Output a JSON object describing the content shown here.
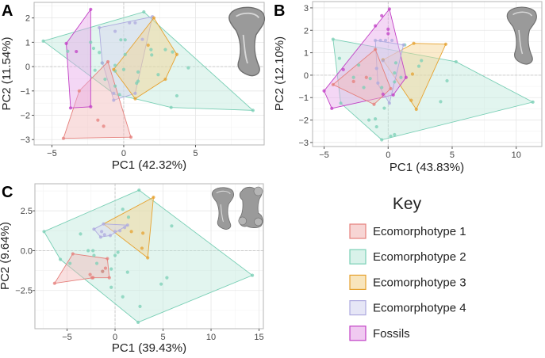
{
  "colors": {
    "eco1": {
      "fill": "#f2b9b7",
      "stroke": "#e57f7b"
    },
    "eco2": {
      "fill": "#bfe9dc",
      "stroke": "#79cfb5"
    },
    "eco3": {
      "fill": "#f4d38f",
      "stroke": "#e6a230"
    },
    "eco4": {
      "fill": "#d6d5f0",
      "stroke": "#aeaadf"
    },
    "fossil": {
      "fill": "#e6a7e8",
      "stroke": "#c13fc5"
    }
  },
  "key": {
    "title": "Key",
    "items": [
      {
        "group": "eco1",
        "label": "Ecomorphotype 1"
      },
      {
        "group": "eco2",
        "label": "Ecomorphotype 2"
      },
      {
        "group": "eco3",
        "label": "Ecomorphotype 3"
      },
      {
        "group": "eco4",
        "label": "Ecomorphotype 4"
      },
      {
        "group": "fossil",
        "label": "Fossils"
      }
    ]
  },
  "chart_data": [
    {
      "id": "A",
      "type": "scatter",
      "letter": "A",
      "xlabel": "PC1 (42.32%)",
      "ylabel": "PC2 (11.54%)",
      "xlim": [
        -6.24,
        9.78
      ],
      "ylim": [
        -3.22,
        2.64
      ],
      "xticks": [
        -5,
        0,
        5
      ],
      "yticks": [
        -3,
        -2,
        -1,
        0,
        1,
        2
      ],
      "xminor": [
        -2.5,
        2.5,
        7.5
      ],
      "yminor": [
        -2.5,
        -1.5,
        -0.5,
        0.5,
        1.5,
        2.5
      ],
      "grid": true,
      "groups": [
        {
          "group": "eco2",
          "hull": [
            [
              -5.6,
              1.05
            ],
            [
              1.4,
              2.25
            ],
            [
              9.0,
              -1.8
            ],
            [
              3.3,
              -1.68
            ],
            [
              0.8,
              -1.32
            ],
            [
              -0.6,
              -1.15
            ]
          ],
          "points": [
            [
              -5.6,
              1.05
            ],
            [
              1.4,
              2.25
            ],
            [
              9.0,
              -1.8
            ],
            [
              3.3,
              -1.68
            ],
            [
              3.7,
              -1.2
            ],
            [
              -3.9,
              0.63
            ],
            [
              -2.3,
              1.0
            ],
            [
              -2.1,
              0.75
            ],
            [
              -1.7,
              0.58
            ],
            [
              -1.5,
              0.15
            ],
            [
              -2.0,
              -0.15
            ],
            [
              -1.3,
              -0.52
            ],
            [
              -0.6,
              -0.8
            ],
            [
              -0.2,
              1.1
            ],
            [
              0.1,
              1.1
            ],
            [
              0.1,
              0.5
            ],
            [
              0.0,
              -0.12
            ],
            [
              1.0,
              -0.22
            ],
            [
              1.0,
              -0.6
            ],
            [
              0.9,
              -0.68
            ],
            [
              1.9,
              0.7
            ],
            [
              1.95,
              0.48
            ],
            [
              2.9,
              0.7
            ],
            [
              3.4,
              0.6
            ],
            [
              2.4,
              -0.33
            ],
            [
              4.5,
              -0.05
            ],
            [
              -0.6,
              0.05
            ],
            [
              -0.6,
              -0.18
            ],
            [
              -0.3,
              -1.15
            ]
          ]
        },
        {
          "group": "eco4",
          "hull": [
            [
              -1.7,
              1.6
            ],
            [
              2.0,
              2.05
            ],
            [
              0.8,
              -1.1
            ],
            [
              -0.7,
              -1.38
            ],
            [
              -1.5,
              0.2
            ]
          ],
          "points": [
            [
              -1.7,
              1.6
            ],
            [
              2.0,
              2.05
            ],
            [
              0.8,
              -1.1
            ],
            [
              -0.7,
              -1.38
            ],
            [
              -1.5,
              0.15
            ],
            [
              -0.6,
              1.45
            ],
            [
              0.4,
              1.8
            ],
            [
              0.8,
              1.8
            ],
            [
              1.3,
              1.12
            ],
            [
              -0.7,
              -1.1
            ]
          ]
        },
        {
          "group": "eco3",
          "hull": [
            [
              2.1,
              2.0
            ],
            [
              3.7,
              0.5
            ],
            [
              2.9,
              -0.52
            ],
            [
              0.8,
              -1.32
            ],
            [
              -0.7,
              -0.12
            ]
          ],
          "points": [
            [
              2.1,
              2.0
            ],
            [
              3.7,
              0.5
            ],
            [
              2.9,
              -0.52
            ],
            [
              0.8,
              -1.32
            ],
            [
              -0.7,
              -0.12
            ],
            [
              1.7,
              0.88
            ]
          ]
        },
        {
          "group": "eco1",
          "hull": [
            [
              -1.1,
              0.2
            ],
            [
              -3.1,
              -1.0
            ],
            [
              -4.2,
              -2.95
            ],
            [
              0.5,
              -2.9
            ]
          ],
          "points": [
            [
              -1.1,
              0.2
            ],
            [
              -3.1,
              -1.0
            ],
            [
              -4.2,
              -2.95
            ],
            [
              0.5,
              -2.9
            ],
            [
              -1.8,
              -2.2
            ],
            [
              -1.4,
              -2.45
            ]
          ]
        },
        {
          "group": "fossil",
          "hull": [
            [
              -2.3,
              2.35
            ],
            [
              -4.0,
              0.95
            ],
            [
              -3.7,
              -1.7
            ],
            [
              -2.3,
              -1.65
            ]
          ],
          "points": [
            [
              -2.3,
              2.35
            ],
            [
              -4.0,
              0.95
            ],
            [
              -3.7,
              -1.7
            ],
            [
              -2.3,
              -1.65
            ],
            [
              -3.3,
              0.62
            ]
          ]
        }
      ]
    },
    {
      "id": "B",
      "type": "scatter",
      "letter": "B",
      "xlabel": "PC1 (43.83%)",
      "ylabel": "PC2 (12.10%)",
      "xlim": [
        -5.9,
        12.0
      ],
      "ylim": [
        -3.18,
        3.28
      ],
      "xticks": [
        -5,
        0,
        5,
        10
      ],
      "yticks": [
        -3,
        -2,
        -1,
        0,
        1,
        2,
        3
      ],
      "xminor": [
        -2.5,
        2.5,
        7.5
      ],
      "yminor": [
        -2.5,
        -1.5,
        -0.5,
        0.5,
        1.5,
        2.5
      ],
      "grid": true,
      "groups": [
        {
          "group": "eco2",
          "hull": [
            [
              -4.3,
              1.6
            ],
            [
              5.3,
              0.6
            ],
            [
              11.3,
              -1.2
            ],
            [
              -0.5,
              -2.88
            ],
            [
              -3.7,
              -1.25
            ]
          ],
          "points": [
            [
              -4.3,
              1.6
            ],
            [
              5.3,
              0.6
            ],
            [
              11.3,
              -1.2
            ],
            [
              -0.5,
              -2.88
            ],
            [
              -3.7,
              -1.25
            ],
            [
              -3.8,
              0.75
            ],
            [
              -2.3,
              0.45
            ],
            [
              -2.7,
              -0.1
            ],
            [
              -1.4,
              -0.15
            ],
            [
              -1.9,
              -0.55
            ],
            [
              -0.5,
              -0.55
            ],
            [
              -0.3,
              -1.47
            ],
            [
              -1.0,
              -1.95
            ],
            [
              -1.5,
              -2.0
            ],
            [
              -0.9,
              -2.3
            ],
            [
              0.2,
              -2.72
            ],
            [
              0.5,
              -2.65
            ],
            [
              0.5,
              -0.3
            ],
            [
              0.5,
              0.1
            ],
            [
              0.6,
              0.55
            ],
            [
              1.0,
              -0.1
            ],
            [
              2.4,
              0.4
            ],
            [
              2.6,
              0.65
            ],
            [
              4.1,
              -1.18
            ],
            [
              4.6,
              -0.25
            ],
            [
              1.3,
              1.35
            ]
          ]
        },
        {
          "group": "eco3",
          "hull": [
            [
              2.0,
              1.42
            ],
            [
              4.5,
              1.38
            ],
            [
              2.2,
              -1.52
            ],
            [
              -0.4,
              0.68
            ]
          ],
          "points": [
            [
              2.0,
              1.42
            ],
            [
              4.5,
              1.38
            ],
            [
              2.2,
              -1.52
            ],
            [
              -0.4,
              0.68
            ],
            [
              1.8,
              -1.12
            ],
            [
              1.9,
              0.05
            ]
          ]
        },
        {
          "group": "fossil",
          "hull": [
            [
              0.1,
              2.95
            ],
            [
              -5.0,
              -0.7
            ],
            [
              -4.4,
              -1.48
            ],
            [
              0.4,
              -0.88
            ],
            [
              1.4,
              -0.1
            ]
          ],
          "points": [
            [
              0.1,
              2.95
            ],
            [
              -5.0,
              -0.7
            ],
            [
              -4.4,
              -1.48
            ],
            [
              0.4,
              -0.88
            ],
            [
              1.4,
              -0.1
            ],
            [
              -0.5,
              2.65
            ],
            [
              -1.0,
              2.2
            ],
            [
              0.0,
              2.05
            ],
            [
              0.0,
              1.85
            ],
            [
              -3.5,
              0.25
            ],
            [
              -0.4,
              -0.85
            ]
          ]
        },
        {
          "group": "eco4",
          "hull": [
            [
              -1.0,
              1.55
            ],
            [
              1.2,
              1.35
            ],
            [
              0.1,
              -1.25
            ],
            [
              -0.8,
              -0.4
            ]
          ],
          "points": [
            [
              -1.0,
              1.55
            ],
            [
              -0.6,
              1.55
            ],
            [
              -0.2,
              1.55
            ],
            [
              0.3,
              1.55
            ],
            [
              1.2,
              1.35
            ],
            [
              0.1,
              -1.25
            ],
            [
              -0.9,
              0.3
            ],
            [
              -0.8,
              -0.35
            ],
            [
              -0.4,
              0.65
            ]
          ]
        },
        {
          "group": "eco1",
          "hull": [
            [
              -1.0,
              1.15
            ],
            [
              -4.3,
              -0.42
            ],
            [
              -1.1,
              -1.3
            ],
            [
              0.2,
              -0.6
            ]
          ],
          "points": [
            [
              -1.0,
              1.15
            ],
            [
              -4.3,
              -0.42
            ],
            [
              -1.1,
              -1.3
            ],
            [
              0.2,
              -0.6
            ],
            [
              -2.7,
              -0.28
            ],
            [
              -1.7,
              -0.1
            ]
          ]
        }
      ]
    },
    {
      "id": "C",
      "type": "scatter",
      "letter": "C",
      "xlabel": "PC1 (39.43%)",
      "ylabel": "PC2 (9.64%)",
      "xlim": [
        -8.35,
        15.45
      ],
      "ylim": [
        -4.9,
        4.2
      ],
      "xticks": [
        -5,
        0,
        5,
        10,
        15
      ],
      "yticks": [
        -2.5,
        0.0,
        2.5
      ],
      "xticklabels": [
        "-5",
        "0",
        "5",
        "10",
        "15"
      ],
      "yticklabels": [
        "-2.5",
        "0.0",
        "2.5"
      ],
      "xminor": [
        -7.5,
        -2.5,
        2.5,
        7.5,
        12.5
      ],
      "yminor": [
        -3.75,
        -1.25,
        1.25,
        3.75
      ],
      "grid": true,
      "groups": [
        {
          "group": "eco2",
          "hull": [
            [
              -7.4,
              1.2
            ],
            [
              2.5,
              3.8
            ],
            [
              14.3,
              -1.55
            ],
            [
              2.4,
              -4.5
            ],
            [
              -5.7,
              -0.55
            ]
          ],
          "points": [
            [
              -7.4,
              1.2
            ],
            [
              2.5,
              3.8
            ],
            [
              14.3,
              -1.55
            ],
            [
              2.4,
              -4.5
            ],
            [
              -5.7,
              -0.55
            ],
            [
              -3.6,
              1.05
            ],
            [
              -2.8,
              0.0
            ],
            [
              -2.3,
              0.0
            ],
            [
              -2.2,
              -0.3
            ],
            [
              -1.9,
              -0.8
            ],
            [
              -1.3,
              -1.3
            ],
            [
              -0.4,
              -1.15
            ],
            [
              -0.4,
              -2.3
            ],
            [
              0.0,
              -0.3
            ],
            [
              0.3,
              -0.1
            ],
            [
              0.8,
              2.6
            ],
            [
              1.4,
              2.1
            ],
            [
              1.3,
              -1.35
            ],
            [
              0.8,
              -2.9
            ],
            [
              2.6,
              -3.5
            ],
            [
              4.8,
              -2.1
            ],
            [
              5.4,
              -1.7
            ],
            [
              5.9,
              1.55
            ],
            [
              -4.7,
              -0.8
            ]
          ]
        },
        {
          "group": "eco3",
          "hull": [
            [
              -1.2,
              1.68
            ],
            [
              4.0,
              3.35
            ],
            [
              3.4,
              -0.45
            ]
          ],
          "points": [
            [
              4.0,
              3.35
            ],
            [
              3.4,
              -0.45
            ],
            [
              1.7,
              1.2
            ],
            [
              2.9,
              1.1
            ],
            [
              2.8,
              0.15
            ]
          ]
        },
        {
          "group": "eco4",
          "hull": [
            [
              -1.2,
              1.68
            ],
            [
              1.3,
              1.6
            ],
            [
              -0.5,
              0.95
            ],
            [
              -1.5,
              0.85
            ],
            [
              -2.2,
              1.35
            ]
          ],
          "points": [
            [
              -1.2,
              1.68
            ],
            [
              -2.2,
              1.35
            ],
            [
              -1.4,
              1.2
            ],
            [
              -1.1,
              1.0
            ],
            [
              -1.5,
              0.85
            ],
            [
              -0.5,
              0.95
            ],
            [
              0.0,
              1.2
            ],
            [
              0.5,
              1.25
            ],
            [
              1.0,
              1.45
            ],
            [
              1.3,
              1.6
            ]
          ]
        },
        {
          "group": "eco1",
          "hull": [
            [
              -4.4,
              -0.2
            ],
            [
              -0.8,
              -0.5
            ],
            [
              -0.6,
              -1.7
            ],
            [
              -2.3,
              -1.7
            ],
            [
              -6.3,
              -2.05
            ]
          ],
          "points": [
            [
              -4.4,
              -0.2
            ],
            [
              -0.8,
              -0.5
            ],
            [
              -0.6,
              -1.7
            ],
            [
              -2.3,
              -1.7
            ],
            [
              -6.3,
              -2.05
            ],
            [
              -2.6,
              -1.5
            ],
            [
              -1.0,
              -1.1
            ],
            [
              -1.3,
              -1.3
            ],
            [
              -2.4,
              -1.7
            ]
          ]
        }
      ]
    }
  ]
}
